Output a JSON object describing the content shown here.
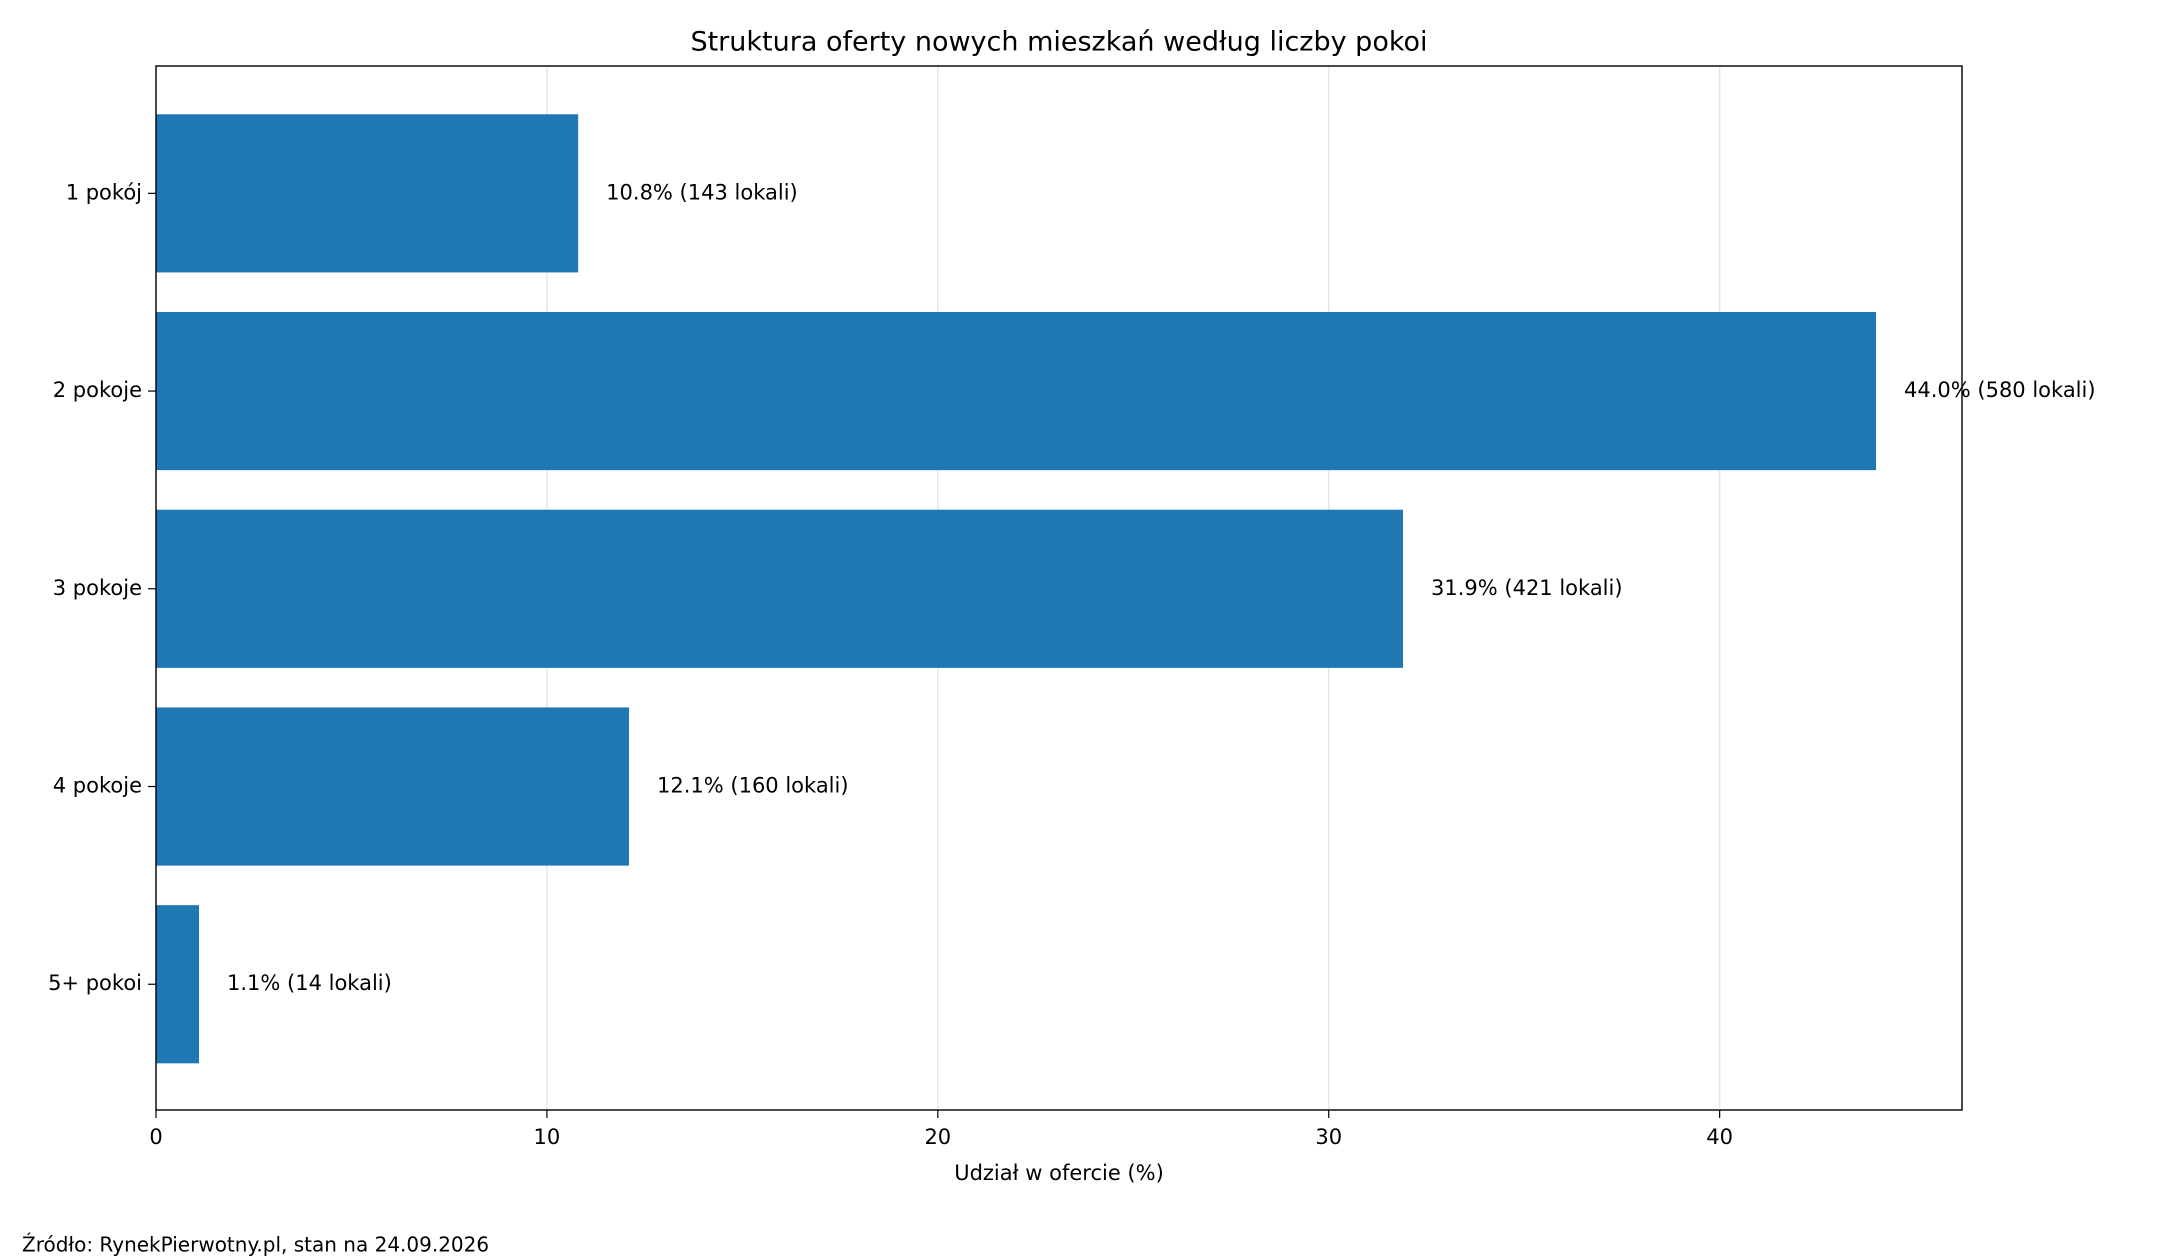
{
  "chart_data": {
    "type": "barh",
    "title": "Struktura oferty nowych mieszkań według liczby pokoi",
    "xlabel": "Udział w ofercie (%)",
    "source": "Źródło: RynekPierwotny.pl, stan na 24.09.2026",
    "categories": [
      "1 pokój",
      "2 pokoje",
      "3 pokoje",
      "4 pokoje",
      "5+ pokoi"
    ],
    "values": [
      10.8,
      44.0,
      31.9,
      12.1,
      1.1
    ],
    "value_labels": [
      "10.8%  (143 lokali)",
      "44.0%  (580 lokali)",
      "31.9%  (421 lokali)",
      "12.1%  (160 lokali)",
      "1.1%  (14 lokali)"
    ],
    "color": "#1f77b4",
    "xlim": [
      0,
      46.2
    ],
    "xticks": [
      0,
      10,
      20,
      30,
      40
    ],
    "grid": true
  }
}
